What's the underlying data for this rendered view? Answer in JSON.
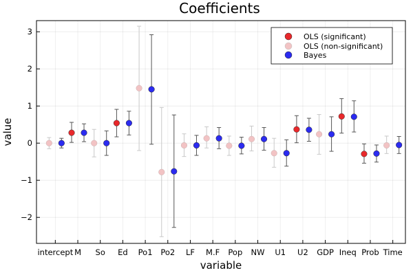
{
  "chart_data": {
    "type": "scatter",
    "title": "Coefficients",
    "xlabel": "variable",
    "ylabel": "value",
    "categories": [
      "intercept",
      "M",
      "So",
      "Ed",
      "Po1",
      "Po2",
      "LF",
      "M.F",
      "Pop",
      "NW",
      "U1",
      "U2",
      "GDP",
      "Ineq",
      "Prob",
      "Time"
    ],
    "ylim": [
      -2.7,
      3.3
    ],
    "yticks": [
      -2,
      -1,
      0,
      1,
      2,
      3
    ],
    "grid": true,
    "legend_position": "top-right",
    "series": [
      {
        "name": "OLS",
        "color_significant": "#e8282b",
        "color_nonsignificant": "#f2c3c4",
        "significant": [
          false,
          true,
          false,
          true,
          false,
          false,
          false,
          false,
          false,
          false,
          false,
          true,
          false,
          true,
          true,
          false
        ],
        "values": [
          0.0,
          0.28,
          0.0,
          0.54,
          1.48,
          -0.78,
          -0.06,
          0.13,
          -0.07,
          0.11,
          -0.27,
          0.37,
          0.24,
          0.72,
          -0.29,
          -0.06
        ],
        "lower": [
          -0.15,
          0.02,
          -0.37,
          0.17,
          -0.2,
          -2.52,
          -0.36,
          -0.13,
          -0.33,
          -0.21,
          -0.65,
          0.01,
          -0.3,
          0.27,
          -0.54,
          -0.28
        ],
        "upper": [
          0.15,
          0.56,
          0.37,
          0.91,
          3.15,
          0.96,
          0.25,
          0.44,
          0.19,
          0.46,
          0.13,
          0.74,
          0.77,
          1.2,
          -0.02,
          0.19
        ]
      },
      {
        "name": "Bayes",
        "color": "#2b2bf0",
        "values": [
          0.0,
          0.28,
          0.0,
          0.54,
          1.45,
          -0.76,
          -0.06,
          0.13,
          -0.07,
          0.11,
          -0.27,
          0.36,
          0.24,
          0.71,
          -0.28,
          -0.05
        ],
        "lower": [
          -0.13,
          0.04,
          -0.33,
          0.22,
          -0.03,
          -2.27,
          -0.33,
          -0.15,
          -0.29,
          -0.19,
          -0.62,
          0.05,
          -0.22,
          0.3,
          -0.51,
          -0.28
        ],
        "upper": [
          0.13,
          0.52,
          0.33,
          0.86,
          2.92,
          0.76,
          0.21,
          0.42,
          0.16,
          0.42,
          0.09,
          0.67,
          0.71,
          1.14,
          -0.05,
          0.18
        ]
      }
    ],
    "legend": [
      {
        "label": "OLS (significant)",
        "color": "#e8282b"
      },
      {
        "label": "OLS (non-significant)",
        "color": "#f2c3c4"
      },
      {
        "label": "Bayes",
        "color": "#2b2bf0"
      }
    ]
  }
}
